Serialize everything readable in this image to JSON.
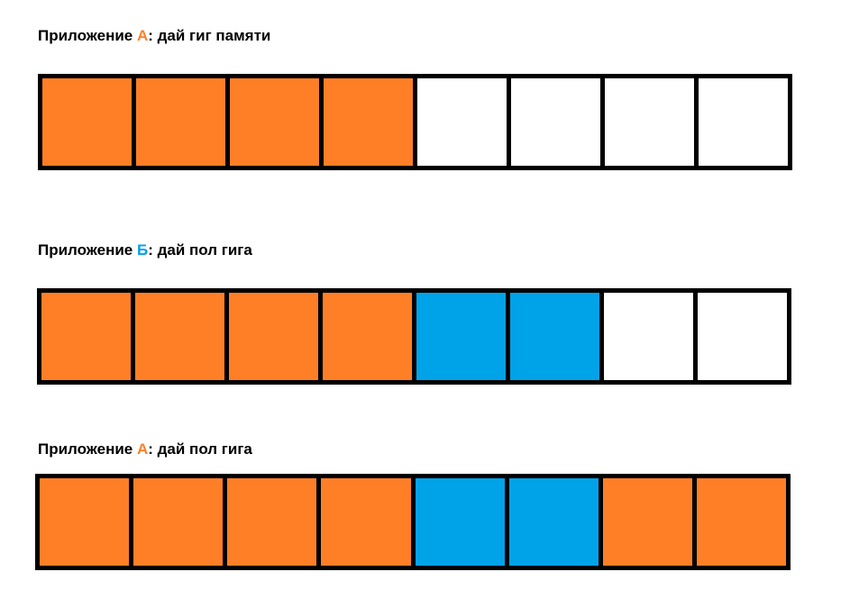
{
  "colors": {
    "A": "#FF7F27",
    "B": "#00A2E8",
    "empty": "#FFFFFF",
    "border": "#000000"
  },
  "sections": [
    {
      "label_prefix": "Приложение ",
      "app": "А",
      "label_suffix": ": дай гиг памяти",
      "blocks": [
        "A",
        "A",
        "A",
        "A",
        "empty",
        "empty",
        "empty",
        "empty"
      ]
    },
    {
      "label_prefix": "Приложение ",
      "app": "Б",
      "label_suffix": ": дай пол гига",
      "blocks": [
        "A",
        "A",
        "A",
        "A",
        "B",
        "B",
        "empty",
        "empty"
      ]
    },
    {
      "label_prefix": "Приложение ",
      "app": "А",
      "label_suffix": ": дай пол гига",
      "blocks": [
        "A",
        "A",
        "A",
        "A",
        "B",
        "B",
        "A",
        "A"
      ]
    }
  ]
}
